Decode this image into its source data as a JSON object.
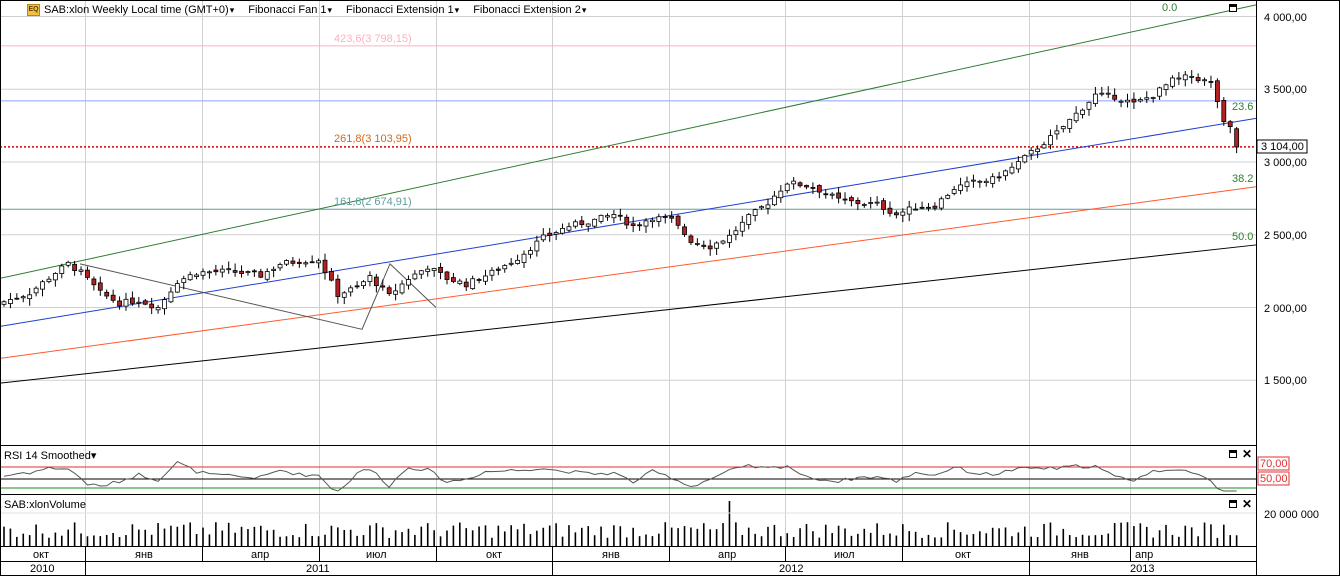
{
  "toolbar": {
    "instrument": "SAB:xlon Weekly Local time (GMT+0)",
    "fib_fan": "Fibonacci Fan 1",
    "fib_ext1": "Fibonacci Extension 1",
    "fib_ext2": "Fibonacci Extension 2"
  },
  "rsi_panel": {
    "title": "RSI 14 Smoothed",
    "upper_label": "70,00",
    "lower_label": "50,00"
  },
  "volume_panel": {
    "title": "SAB:xlonVolume",
    "scale_label": "20 000 000"
  },
  "price_axis": {
    "labels": [
      "4 000,00",
      "3 500,00",
      "3 000,00",
      "2 500,00",
      "2 000,00",
      "1 500,00"
    ]
  },
  "last_price": "3 104,00",
  "fib_labels": {
    "ext_423": "423,6(3 798,15)",
    "ext_261": "261,8(3 103,95)",
    "ext_161": "161,8(2 674,91)",
    "fan_0": "0.0",
    "fan_236": "23.6",
    "fan_382": "38.2",
    "fan_500": "50.0"
  },
  "time_axis": {
    "months": [
      "окт",
      "янв",
      "апр",
      "июл",
      "окт",
      "янв",
      "апр",
      "июл",
      "окт",
      "янв",
      "апр"
    ],
    "years": [
      "2010",
      "2011",
      "2012",
      "2013"
    ]
  },
  "colors": {
    "up": "#ffffff",
    "down": "#b22222",
    "fan0": "#2e7d32",
    "fan236": "#1f3fd1",
    "fan382": "#ff5a2e",
    "fan500": "#000000",
    "ext261": "#d2691e",
    "ext423": "#ffb0c0",
    "ext161": "#5f9ea0",
    "rsi_upper": "#e03030",
    "rsi_lower": "#1e8a1e",
    "close_line": "#d40000"
  },
  "chart_data": [
    {
      "type": "candlestick",
      "title": "SAB:xlon Weekly",
      "ylim": [
        1100,
        4100
      ],
      "y_ticks": [
        1500,
        2000,
        2500,
        3000,
        3500,
        4000
      ],
      "last_close": 3104,
      "close_anchors": [
        [
          0,
          2040
        ],
        [
          4,
          2100
        ],
        [
          8,
          2240
        ],
        [
          10,
          2300
        ],
        [
          12,
          2240
        ],
        [
          15,
          2100
        ],
        [
          18,
          2030
        ],
        [
          21,
          2050
        ],
        [
          24,
          2000
        ],
        [
          27,
          2180
        ],
        [
          30,
          2240
        ],
        [
          35,
          2250
        ],
        [
          40,
          2220
        ],
        [
          43,
          2300
        ],
        [
          46,
          2320
        ],
        [
          49,
          2330
        ],
        [
          52,
          2090
        ],
        [
          55,
          2140
        ],
        [
          57,
          2210
        ],
        [
          60,
          2080
        ],
        [
          63,
          2200
        ],
        [
          66,
          2280
        ],
        [
          69,
          2200
        ],
        [
          72,
          2160
        ],
        [
          76,
          2240
        ],
        [
          80,
          2340
        ],
        [
          84,
          2480
        ],
        [
          88,
          2560
        ],
        [
          92,
          2600
        ],
        [
          95,
          2640
        ],
        [
          98,
          2560
        ],
        [
          101,
          2620
        ],
        [
          104,
          2600
        ],
        [
          107,
          2460
        ],
        [
          110,
          2420
        ],
        [
          113,
          2490
        ],
        [
          116,
          2620
        ],
        [
          119,
          2720
        ],
        [
          122,
          2860
        ],
        [
          126,
          2830
        ],
        [
          130,
          2740
        ],
        [
          133,
          2720
        ],
        [
          136,
          2710
        ],
        [
          139,
          2640
        ],
        [
          142,
          2690
        ],
        [
          145,
          2700
        ],
        [
          148,
          2820
        ],
        [
          151,
          2860
        ],
        [
          154,
          2880
        ],
        [
          157,
          2960
        ],
        [
          161,
          3100
        ],
        [
          164,
          3200
        ],
        [
          167,
          3330
        ],
        [
          170,
          3460
        ],
        [
          173,
          3450
        ],
        [
          176,
          3400
        ],
        [
          179,
          3460
        ],
        [
          182,
          3560
        ],
        [
          185,
          3590
        ],
        [
          188,
          3540
        ],
        [
          189,
          3420
        ],
        [
          190,
          3260
        ],
        [
          191,
          3230
        ],
        [
          192,
          3104
        ]
      ],
      "fib_extensions": [
        {
          "level": "161,8",
          "price": 2674.91
        },
        {
          "level": "261,8",
          "price": 3103.95
        },
        {
          "level": "423,6",
          "price": 3798.15
        }
      ],
      "fib_fan_levels": [
        "0.0",
        "23.6",
        "38.2",
        "50.0"
      ]
    },
    {
      "type": "line",
      "title": "RSI 14 Smoothed",
      "ylim": [
        0,
        100
      ],
      "levels": [
        70,
        50
      ]
    },
    {
      "type": "bar",
      "title": "SAB:xlonVolume",
      "y_ticks": [
        20000000
      ],
      "spike_week": 113
    }
  ]
}
